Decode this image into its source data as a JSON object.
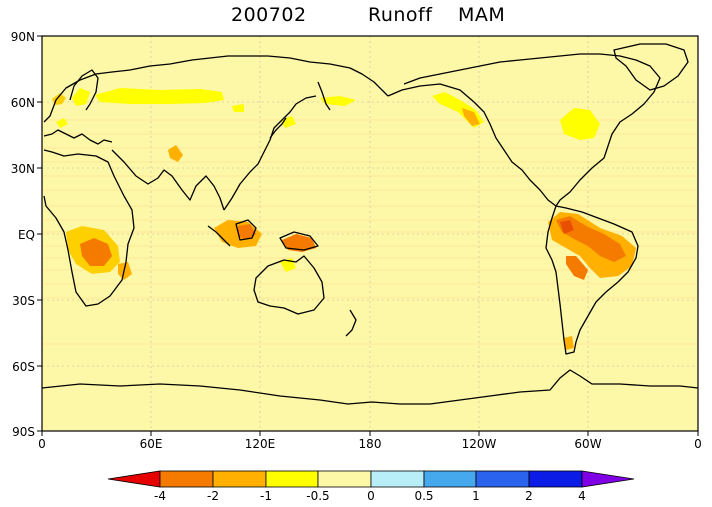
{
  "title": {
    "date": "200702",
    "variable": "Runoff",
    "season": "MAM"
  },
  "map": {
    "lon_labels": [
      "0",
      "60E",
      "120E",
      "180",
      "120W",
      "60W",
      "0"
    ],
    "lat_labels": [
      "90N",
      "60N",
      "30N",
      "EQ",
      "30S",
      "60S",
      "90S"
    ],
    "background_color": "#fdf7a8"
  },
  "colorbar": {
    "labels": [
      "-4",
      "-2",
      "-1",
      "-0.5",
      "0",
      "0.5",
      "1",
      "2",
      "4"
    ],
    "colors": [
      "#e60000",
      "#f47a00",
      "#ffb000",
      "#ffff00",
      "#fdf7a8",
      "#b8eef8",
      "#46a9ee",
      "#2a63ee",
      "#0a1ce6",
      "#8000e6"
    ]
  }
}
